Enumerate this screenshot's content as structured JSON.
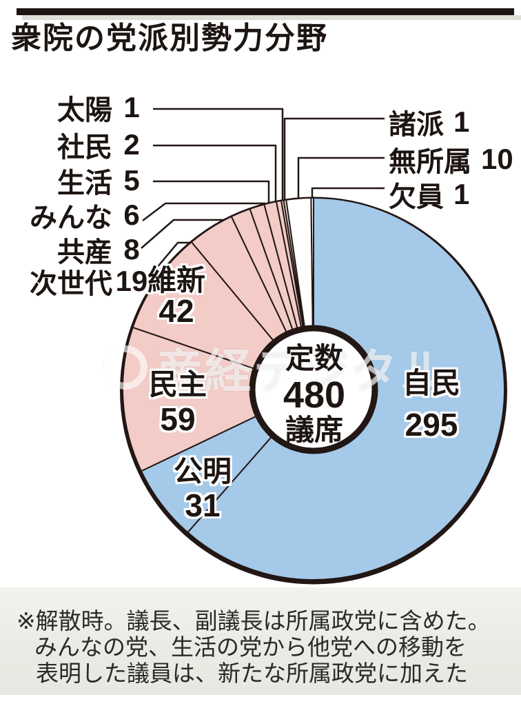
{
  "header": {
    "title": "衆院の党派別勢力分野"
  },
  "chart_data": {
    "type": "pie",
    "title": "衆院の党派別勢力分野",
    "total": 480,
    "center_label": [
      "定数",
      "480",
      "議席"
    ],
    "start_angle_deg": 0,
    "direction": "clockwise",
    "legend_position": "none",
    "slices": [
      {
        "name": "自民",
        "value": 295,
        "color": "#a5c9e9"
      },
      {
        "name": "公明",
        "value": 31,
        "color": "#a5c9e9"
      },
      {
        "name": "民主",
        "value": 59,
        "color": "#f3ccc7"
      },
      {
        "name": "維新",
        "value": 42,
        "color": "#f3ccc7"
      },
      {
        "name": "次世代",
        "value": 19,
        "color": "#f3ccc7"
      },
      {
        "name": "共産",
        "value": 8,
        "color": "#f3ccc7"
      },
      {
        "name": "みんな",
        "value": 6,
        "color": "#f3ccc7"
      },
      {
        "name": "生活",
        "value": 5,
        "color": "#f3ccc7"
      },
      {
        "name": "社民",
        "value": 2,
        "color": "#f3ccc7"
      },
      {
        "name": "太陽",
        "value": 1,
        "color": "#f3ccc7"
      },
      {
        "name": "諸派",
        "value": 1,
        "color": "#ffffff"
      },
      {
        "name": "無所属",
        "value": 10,
        "color": "#ffffff"
      },
      {
        "name": "欠員",
        "value": 1,
        "color": "#ffffff"
      }
    ],
    "outline_color": "#221714"
  },
  "watermark": {
    "text": "産経デジタル"
  },
  "footer": {
    "lines": [
      "※解散時。議長、副議長は所属政党に含めた。",
      "みんなの党、生活の党から他党への移動を",
      "表明した議員は、新たな所属政党に加えた"
    ]
  }
}
